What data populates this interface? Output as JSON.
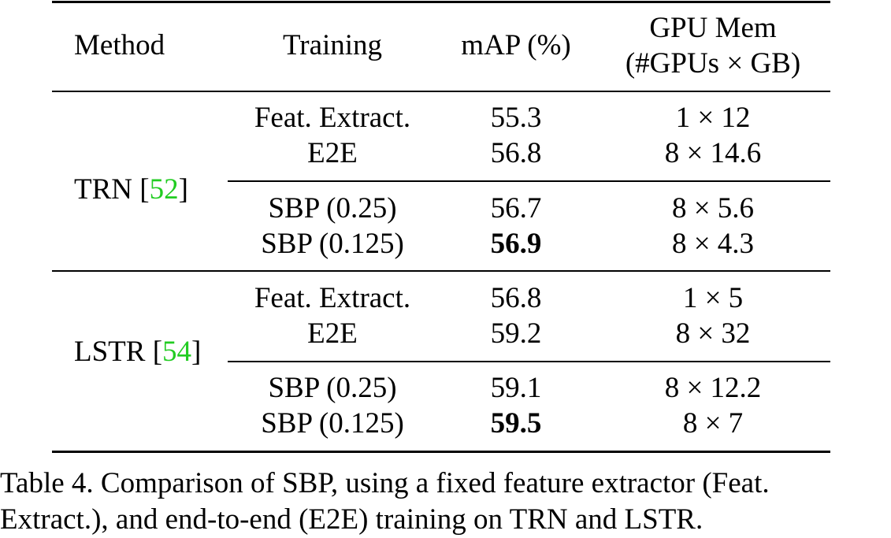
{
  "table": {
    "headers": {
      "method": "Method",
      "training": "Training",
      "map": "mAP (%)",
      "gpu_line1": "GPU Mem",
      "gpu_line2": "(#GPUs × GB)"
    },
    "groups": [
      {
        "method_name": "TRN [",
        "method_ref": "52",
        "method_close": "]",
        "rows": [
          {
            "training": "Feat. Extract.",
            "map": "55.3",
            "map_bold": false,
            "gpu": "1 × 12"
          },
          {
            "training": "E2E",
            "map": "56.8",
            "map_bold": false,
            "gpu": "8 × 14.6"
          },
          {
            "training": "SBP (0.25)",
            "map": "56.7",
            "map_bold": false,
            "gpu": "8 × 5.6"
          },
          {
            "training": "SBP (0.125)",
            "map": "56.9",
            "map_bold": true,
            "gpu": "8 × 4.3"
          }
        ]
      },
      {
        "method_name": "LSTR [",
        "method_ref": "54",
        "method_close": "]",
        "rows": [
          {
            "training": "Feat. Extract.",
            "map": "56.8",
            "map_bold": false,
            "gpu": "1 × 5"
          },
          {
            "training": "E2E",
            "map": "59.2",
            "map_bold": false,
            "gpu": "8 × 32"
          },
          {
            "training": "SBP (0.25)",
            "map": "59.1",
            "map_bold": false,
            "gpu": "8 × 12.2"
          },
          {
            "training": "SBP (0.125)",
            "map": "59.5",
            "map_bold": true,
            "gpu": "8 × 7"
          }
        ]
      }
    ],
    "citation_color": "#22cc22"
  },
  "caption": {
    "line1": "Table 4. Comparison of SBP, using a fixed feature extractor (Feat.",
    "line2": "Extract.), and end-to-end (E2E) training on TRN and LSTR."
  }
}
